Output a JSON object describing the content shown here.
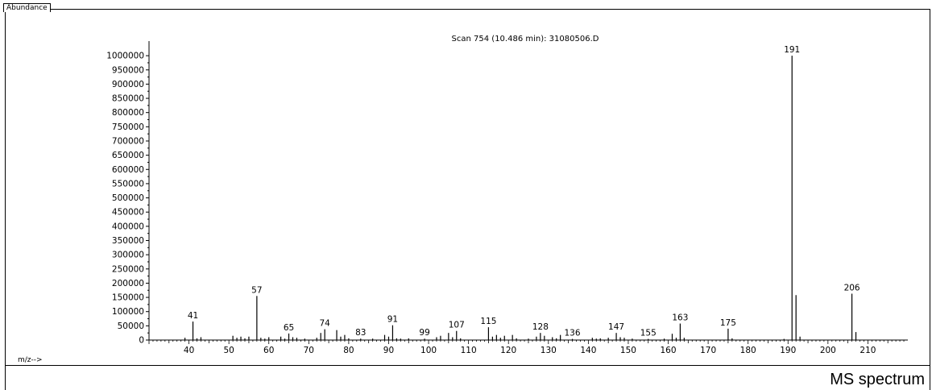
{
  "header": {
    "ylabel_tab": "Abundance"
  },
  "footer": {
    "caption": "MS spectrum"
  },
  "chart_data": {
    "type": "bar",
    "title": "Scan 754 (10.486 min): 31080506.D",
    "xlabel": "m/z-->",
    "ylabel": "Abundance",
    "xlim": [
      30,
      220
    ],
    "ylim": [
      0,
      1040000
    ],
    "yticks": [
      0,
      50000,
      100000,
      150000,
      200000,
      250000,
      300000,
      350000,
      400000,
      450000,
      500000,
      550000,
      600000,
      650000,
      700000,
      750000,
      800000,
      850000,
      900000,
      950000,
      1000000
    ],
    "xticks": [
      40,
      50,
      60,
      70,
      80,
      90,
      100,
      110,
      120,
      130,
      140,
      150,
      160,
      170,
      180,
      190,
      200,
      210
    ],
    "peaks": [
      {
        "mz": 39,
        "y": 8000
      },
      {
        "mz": 41,
        "y": 65000,
        "label": "41"
      },
      {
        "mz": 42,
        "y": 6000
      },
      {
        "mz": 43,
        "y": 10000
      },
      {
        "mz": 51,
        "y": 15000
      },
      {
        "mz": 52,
        "y": 8000
      },
      {
        "mz": 53,
        "y": 12000
      },
      {
        "mz": 54,
        "y": 6000
      },
      {
        "mz": 55,
        "y": 12000
      },
      {
        "mz": 57,
        "y": 155000,
        "label": "57"
      },
      {
        "mz": 58,
        "y": 8000
      },
      {
        "mz": 59,
        "y": 5000
      },
      {
        "mz": 60,
        "y": 10000
      },
      {
        "mz": 63,
        "y": 12000
      },
      {
        "mz": 64,
        "y": 5000
      },
      {
        "mz": 65,
        "y": 23000,
        "label": "65"
      },
      {
        "mz": 66,
        "y": 10000
      },
      {
        "mz": 67,
        "y": 8000
      },
      {
        "mz": 69,
        "y": 5000
      },
      {
        "mz": 72,
        "y": 8000
      },
      {
        "mz": 73,
        "y": 25000
      },
      {
        "mz": 74,
        "y": 38000,
        "label": "74"
      },
      {
        "mz": 77,
        "y": 35000
      },
      {
        "mz": 78,
        "y": 12000
      },
      {
        "mz": 79,
        "y": 18000
      },
      {
        "mz": 80,
        "y": 6000
      },
      {
        "mz": 83,
        "y": 5000,
        "label": "83"
      },
      {
        "mz": 86,
        "y": 5000
      },
      {
        "mz": 89,
        "y": 18000
      },
      {
        "mz": 90,
        "y": 12000
      },
      {
        "mz": 91,
        "y": 52000,
        "label": "91"
      },
      {
        "mz": 92,
        "y": 6000
      },
      {
        "mz": 93,
        "y": 5000
      },
      {
        "mz": 95,
        "y": 6000
      },
      {
        "mz": 99,
        "y": 5000,
        "label": "99"
      },
      {
        "mz": 102,
        "y": 10000
      },
      {
        "mz": 103,
        "y": 15000
      },
      {
        "mz": 105,
        "y": 25000
      },
      {
        "mz": 106,
        "y": 10000
      },
      {
        "mz": 107,
        "y": 32000,
        "label": "107"
      },
      {
        "mz": 108,
        "y": 6000
      },
      {
        "mz": 115,
        "y": 45000,
        "label": "115"
      },
      {
        "mz": 116,
        "y": 12000
      },
      {
        "mz": 117,
        "y": 18000
      },
      {
        "mz": 118,
        "y": 8000
      },
      {
        "mz": 119,
        "y": 15000
      },
      {
        "mz": 121,
        "y": 18000
      },
      {
        "mz": 122,
        "y": 6000
      },
      {
        "mz": 125,
        "y": 5000
      },
      {
        "mz": 127,
        "y": 12000
      },
      {
        "mz": 128,
        "y": 25000,
        "label": "128"
      },
      {
        "mz": 129,
        "y": 15000
      },
      {
        "mz": 131,
        "y": 10000
      },
      {
        "mz": 132,
        "y": 6000
      },
      {
        "mz": 133,
        "y": 18000
      },
      {
        "mz": 136,
        "y": 4000,
        "label": "136"
      },
      {
        "mz": 141,
        "y": 8000
      },
      {
        "mz": 142,
        "y": 5000
      },
      {
        "mz": 143,
        "y": 6000
      },
      {
        "mz": 145,
        "y": 8000
      },
      {
        "mz": 147,
        "y": 25000,
        "label": "147"
      },
      {
        "mz": 148,
        "y": 10000
      },
      {
        "mz": 149,
        "y": 8000
      },
      {
        "mz": 151,
        "y": 5000
      },
      {
        "mz": 155,
        "y": 4000,
        "label": "155"
      },
      {
        "mz": 159,
        "y": 5000
      },
      {
        "mz": 161,
        "y": 22000
      },
      {
        "mz": 162,
        "y": 8000
      },
      {
        "mz": 163,
        "y": 58000,
        "label": "163"
      },
      {
        "mz": 164,
        "y": 8000
      },
      {
        "mz": 175,
        "y": 40000,
        "label": "175"
      },
      {
        "mz": 176,
        "y": 6000
      },
      {
        "mz": 189,
        "y": 4000
      },
      {
        "mz": 191,
        "y": 1000000,
        "label": "191"
      },
      {
        "mz": 192,
        "y": 158000
      },
      {
        "mz": 193,
        "y": 12000
      },
      {
        "mz": 206,
        "y": 163000,
        "label": "206"
      },
      {
        "mz": 207,
        "y": 28000
      }
    ]
  }
}
